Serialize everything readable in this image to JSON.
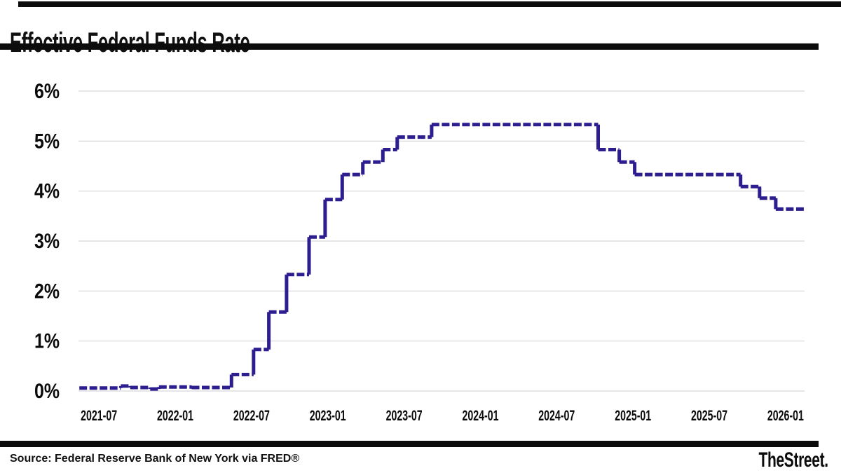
{
  "header": {
    "title": "Effective Federal Funds Rate"
  },
  "footer": {
    "source": "Source: Federal Reserve Bank of New York via FRED®",
    "logo": "TheStreet."
  },
  "chart_data": {
    "type": "line",
    "subtype": "step",
    "title": "Effective Federal Funds Rate",
    "y_unit": "%",
    "y_ticks": [
      "0%",
      "1%",
      "2%",
      "3%",
      "4%",
      "5%",
      "6%"
    ],
    "y_min": 0,
    "y_max": 6,
    "x_ticks": [
      "2021-07",
      "2022-01",
      "2022-07",
      "2023-01",
      "2023-07",
      "2024-01",
      "2024-07",
      "2025-01",
      "2025-07",
      "2026-01"
    ],
    "x_domain": [
      "2021-05-13",
      "2026-02-16"
    ],
    "grid": "horizontal",
    "legend": "none",
    "line_color": "#2d1e8f",
    "series": [
      {
        "name": "Effective Federal Funds Rate (%)",
        "points": [
          [
            "2021-05-15",
            0.06
          ],
          [
            "2021-08-23",
            0.1
          ],
          [
            "2021-09-15",
            0.07
          ],
          [
            "2021-11-02",
            0.04
          ],
          [
            "2021-11-23",
            0.08
          ],
          [
            "2022-02-10",
            0.07
          ],
          [
            "2022-05-14",
            0.33
          ],
          [
            "2022-07-06",
            0.83
          ],
          [
            "2022-08-12",
            1.58
          ],
          [
            "2022-09-24",
            2.33
          ],
          [
            "2022-11-17",
            3.08
          ],
          [
            "2022-12-25",
            3.83
          ],
          [
            "2023-02-05",
            4.33
          ],
          [
            "2023-03-24",
            4.58
          ],
          [
            "2023-05-11",
            4.83
          ],
          [
            "2023-06-15",
            5.08
          ],
          [
            "2023-09-06",
            5.33
          ],
          [
            "2024-10-09",
            4.83
          ],
          [
            "2024-11-29",
            4.58
          ],
          [
            "2025-01-05",
            4.33
          ],
          [
            "2025-09-15",
            4.09
          ],
          [
            "2025-10-30",
            3.86
          ],
          [
            "2025-12-08",
            3.64
          ],
          [
            "2026-02-16",
            3.64
          ]
        ]
      }
    ]
  }
}
